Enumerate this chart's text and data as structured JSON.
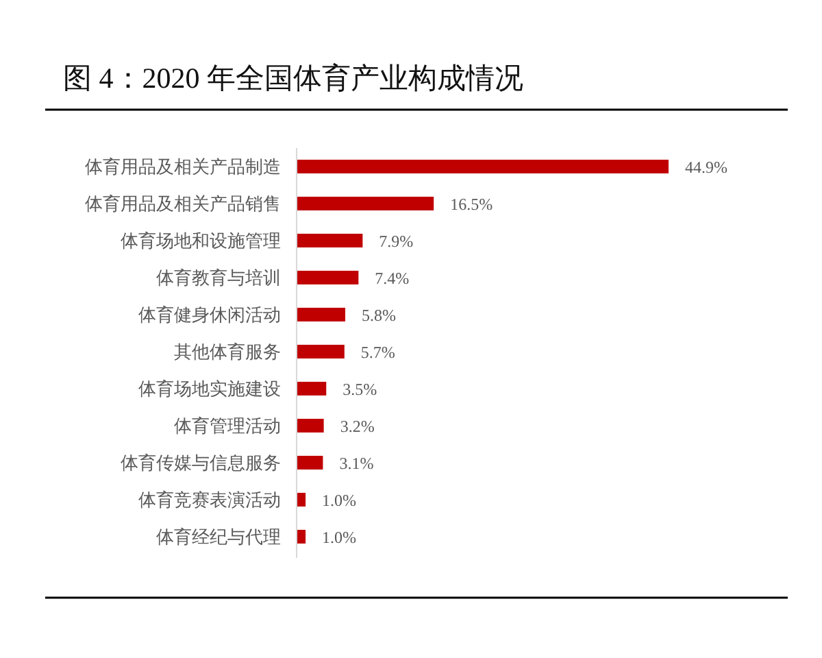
{
  "chart_data": {
    "type": "bar",
    "orientation": "horizontal",
    "title": "图 4：2020 年全国体育产业构成情况",
    "categories": [
      "体育用品及相关产品制造",
      "体育用品及相关产品销售",
      "体育场地和设施管理",
      "体育教育与培训",
      "体育健身休闲活动",
      "其他体育服务",
      "体育场地实施建设",
      "体育管理活动",
      "体育传媒与信息服务",
      "体育竞赛表演活动",
      "体育经纪与代理"
    ],
    "values": [
      44.9,
      16.5,
      7.9,
      7.4,
      5.8,
      5.7,
      3.5,
      3.2,
      3.1,
      1.0,
      1.0
    ],
    "value_labels": [
      "44.9%",
      "16.5%",
      "7.9%",
      "7.4%",
      "5.8%",
      "5.7%",
      "3.5%",
      "3.2%",
      "3.1%",
      "1.0%",
      "1.0%"
    ],
    "color": "#c00000",
    "tick_labels": "y"
  }
}
